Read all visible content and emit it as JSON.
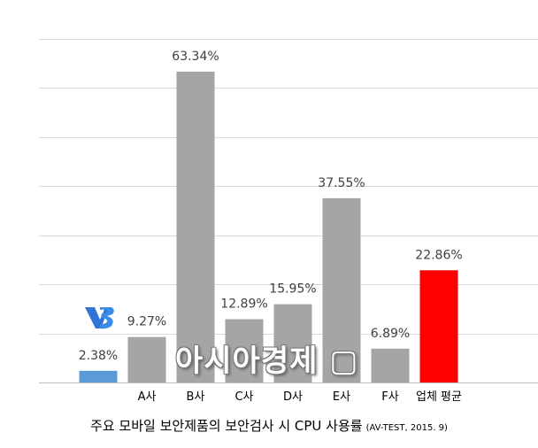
{
  "chart_data": {
    "type": "bar",
    "categories": [
      "",
      "A사",
      "B사",
      "C사",
      "D사",
      "E사",
      "F사",
      "업체 평균"
    ],
    "values": [
      2.38,
      9.27,
      63.34,
      12.89,
      15.95,
      37.55,
      6.89,
      22.86
    ],
    "value_labels": [
      "2.38%",
      "9.27%",
      "63.34%",
      "12.89%",
      "15.95%",
      "37.55%",
      "6.89%",
      "22.86%"
    ],
    "ylim": [
      0,
      70
    ],
    "grid_step": 10,
    "grid": true,
    "bar_colors": [
      "#5b9bd5",
      "#a5a5a5",
      "#a5a5a5",
      "#a5a5a5",
      "#a5a5a5",
      "#a5a5a5",
      "#a5a5a5",
      "#ff0000"
    ],
    "first_bar_logo": "v3-logo-icon"
  },
  "caption": {
    "text": "주요 모바일 보안제품의 보안검사 시 CPU 사용률",
    "source": "(AV-TEST, 2015. 9)"
  },
  "watermark": "아시아경제 ▢"
}
